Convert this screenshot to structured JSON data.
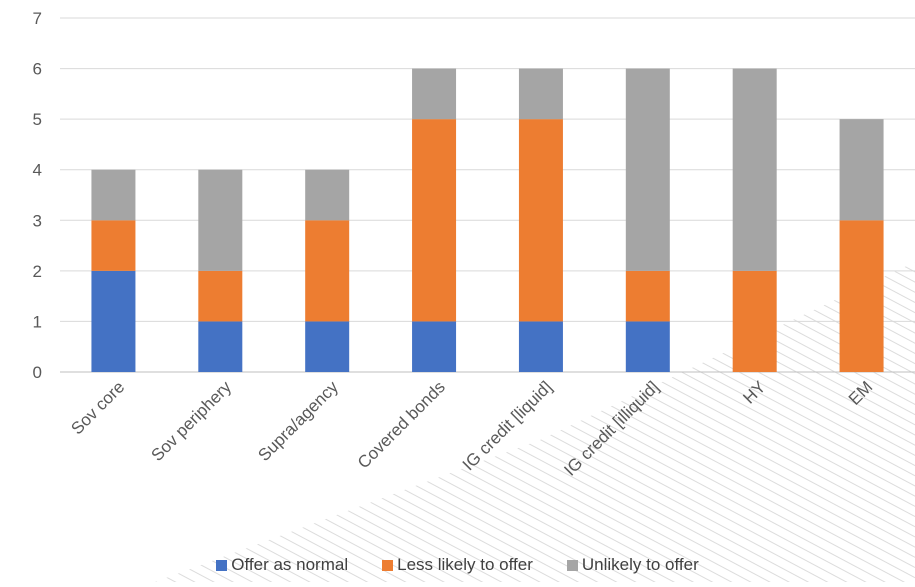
{
  "chart_data": {
    "type": "bar",
    "stacked": true,
    "title": "",
    "xlabel": "",
    "ylabel": "",
    "ylim": [
      0,
      7
    ],
    "yticks": [
      0,
      1,
      2,
      3,
      4,
      5,
      6,
      7
    ],
    "grid": true,
    "legend_position": "bottom",
    "categories": [
      "Sov core",
      "Sov periphery",
      "Supra/agency",
      "Covered bonds",
      "IG credit [liquid]",
      "IG credit [illiquid]",
      "HY",
      "EM"
    ],
    "series": [
      {
        "name": "Offer as normal",
        "color": "#4472C4",
        "values": [
          2,
          1,
          1,
          1,
          1,
          1,
          0,
          0
        ]
      },
      {
        "name": "Less likely to offer",
        "color": "#ED7D31",
        "values": [
          1,
          1,
          2,
          4,
          4,
          1,
          2,
          3
        ]
      },
      {
        "name": "Unlikely to offer",
        "color": "#A5A5A5",
        "values": [
          1,
          2,
          1,
          1,
          1,
          4,
          4,
          2
        ]
      }
    ]
  }
}
